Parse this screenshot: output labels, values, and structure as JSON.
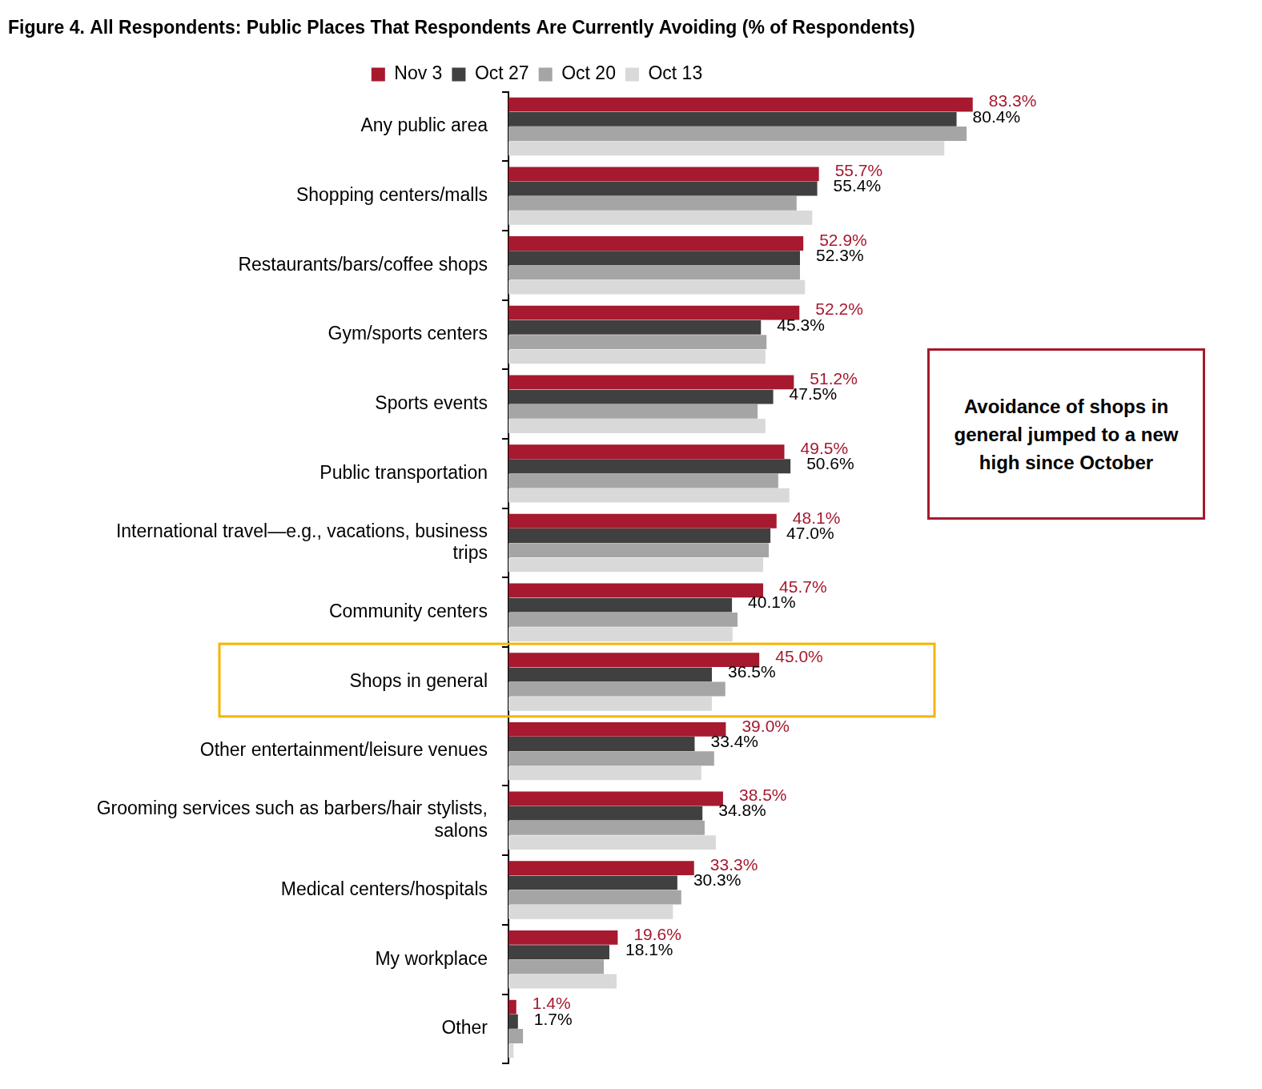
{
  "chart_data": {
    "type": "bar",
    "orientation": "horizontal",
    "title": "Figure 4. All Respondents: Public Places That Respondents Are Currently Avoiding (% of Respondents)",
    "categories": [
      "Any public area",
      "Shopping centers/malls",
      "Restaurants/bars/coffee shops",
      "Gym/sports centers",
      "Sports events",
      "Public transportation",
      "International travel—e.g., vacations, business trips",
      "Community centers",
      "Shops in general",
      "Other entertainment/leisure venues",
      "Grooming services such as barbers/hair stylists, salons",
      "Medical centers/hospitals",
      "My workplace",
      "Other"
    ],
    "series": [
      {
        "name": "Nov 3",
        "color": "#A6192E",
        "data_labels": true,
        "values": [
          83.3,
          55.7,
          52.9,
          52.2,
          51.2,
          49.5,
          48.1,
          45.7,
          45.0,
          39.0,
          38.5,
          33.3,
          19.6,
          1.4
        ],
        "value_labels": [
          "83.3%",
          "55.7%",
          "52.9%",
          "52.2%",
          "51.2%",
          "49.5%",
          "48.1%",
          "45.7%",
          "45.0%",
          "39.0%",
          "38.5%",
          "33.3%",
          "19.6%",
          "1.4%"
        ]
      },
      {
        "name": "Oct 27",
        "color": "#404040",
        "data_labels": true,
        "values": [
          80.4,
          55.4,
          52.3,
          45.3,
          47.5,
          50.6,
          47.0,
          40.1,
          36.5,
          33.4,
          34.8,
          30.3,
          18.1,
          1.7
        ],
        "value_labels": [
          "80.4%",
          "55.4%",
          "52.3%",
          "45.3%",
          "47.5%",
          "50.6%",
          "47.0%",
          "40.1%",
          "36.5%",
          "33.4%",
          "34.8%",
          "30.3%",
          "18.1%",
          "1.7%"
        ]
      },
      {
        "name": "Oct 20",
        "color": "#A5A5A5",
        "values": [
          82.2,
          51.7,
          52.3,
          46.3,
          44.7,
          48.4,
          46.7,
          41.1,
          38.9,
          36.9,
          35.2,
          31.0,
          17.1,
          2.6
        ]
      },
      {
        "name": "Oct 13",
        "color": "#D9D9D9",
        "values": [
          78.2,
          54.5,
          53.2,
          46.1,
          46.1,
          50.4,
          45.7,
          40.2,
          36.5,
          34.6,
          37.2,
          29.5,
          19.4,
          0.9
        ]
      }
    ],
    "xlim": [
      0,
      100
    ],
    "grid": false,
    "legend": "top",
    "tick_labels": "y",
    "highlight": "Shops in general",
    "annotations": [
      {
        "text": "Avoidance of shops in general jumped to a new high since October"
      }
    ]
  }
}
